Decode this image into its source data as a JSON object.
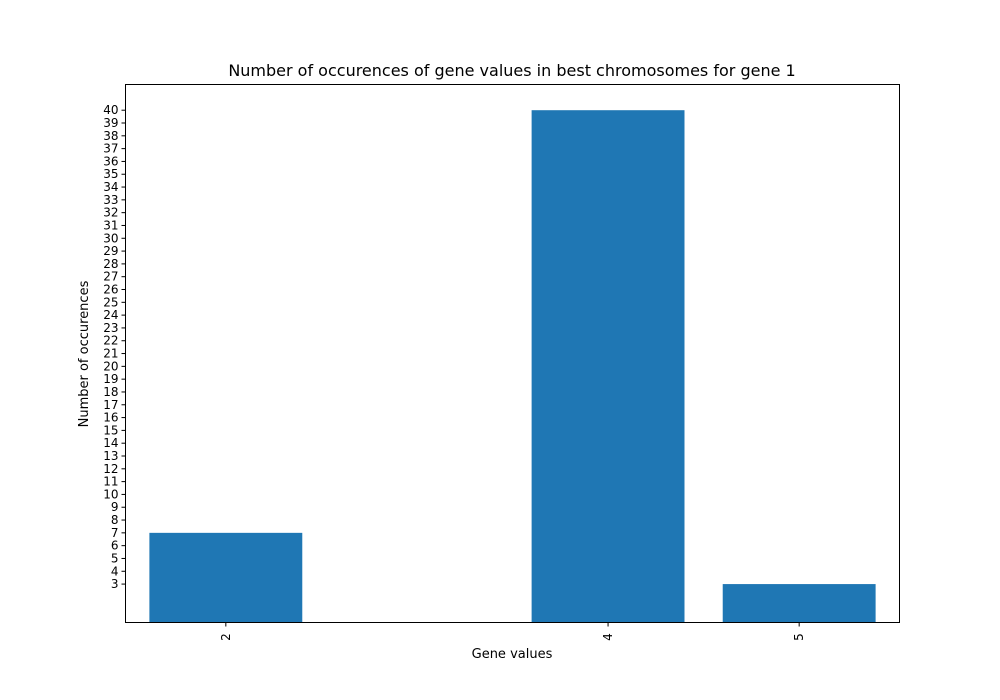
{
  "chart_data": {
    "type": "bar",
    "title": "Number of occurences of gene values in best chromosomes for gene 1",
    "xlabel": "Gene values",
    "ylabel": "Number of occurences",
    "categories": [
      "2",
      "4",
      "5"
    ],
    "x": [
      2,
      4,
      5
    ],
    "values": [
      7,
      40,
      3
    ],
    "xlim": [
      1.475,
      5.525
    ],
    "ylim": [
      0,
      40
    ],
    "yticks": [
      3,
      4,
      5,
      6,
      7,
      8,
      9,
      10,
      11,
      12,
      13,
      14,
      15,
      16,
      17,
      18,
      19,
      20,
      21,
      22,
      23,
      24,
      25,
      26,
      27,
      28,
      29,
      30,
      31,
      32,
      33,
      34,
      35,
      36,
      37,
      38,
      39,
      40
    ],
    "bar_width": 0.8,
    "bar_color": "#1f77b4",
    "x_tick_rotation": "vertical",
    "grid": false,
    "legend": false
  }
}
